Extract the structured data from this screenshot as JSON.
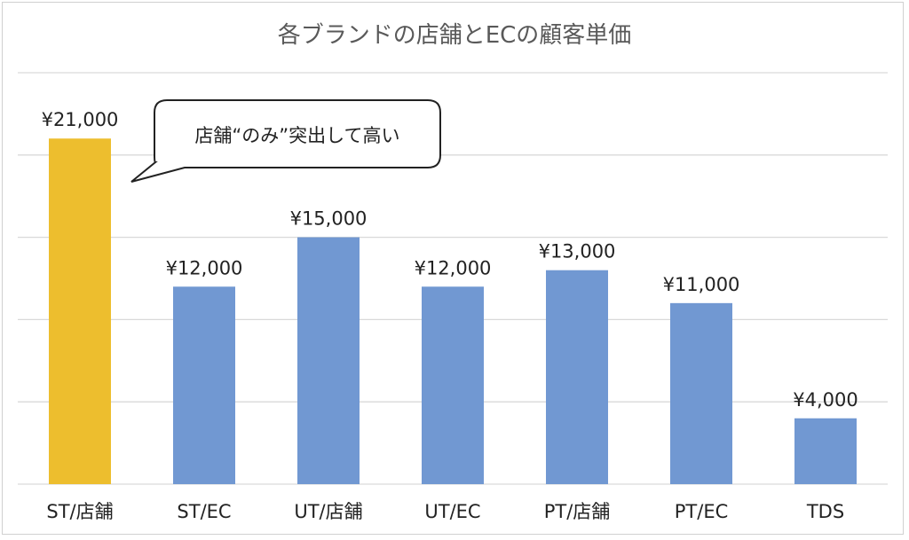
{
  "chart_data": {
    "type": "bar",
    "title": "各ブランドの店舗とECの顧客単価",
    "categories": [
      "ST/店舗",
      "ST/EC",
      "UT/店舗",
      "UT/EC",
      "PT/店舗",
      "PT/EC",
      "TDS"
    ],
    "values": [
      21000,
      12000,
      15000,
      12000,
      13000,
      11000,
      4000
    ],
    "value_labels": [
      "¥21,000",
      "¥12,000",
      "¥15,000",
      "¥12,000",
      "¥13,000",
      "¥11,000",
      "¥4,000"
    ],
    "ylim": [
      0,
      25000
    ],
    "y_gridlines": [
      0,
      5000,
      10000,
      15000,
      20000,
      25000
    ],
    "grid": true,
    "highlight_index": 0,
    "colors": {
      "highlight": "#EDBE2E",
      "bar": "#7198D2",
      "grid": "#D9D9D9",
      "text": "#222222",
      "title": "#595959"
    },
    "annotations": [
      {
        "text": "店舗“のみ”突出して高い",
        "target_category": "ST/店舗"
      }
    ]
  }
}
